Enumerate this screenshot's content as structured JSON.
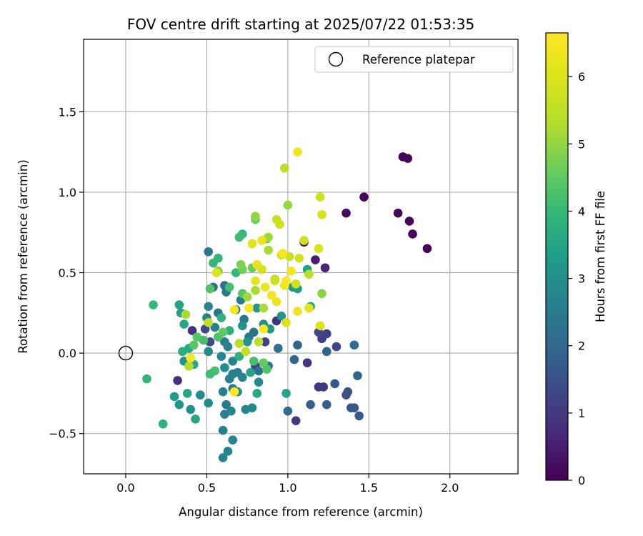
{
  "chart_data": {
    "type": "scatter",
    "title": "FOV centre drift starting at 2025/07/22 01:53:35",
    "xlabel": "Angular distance from reference (arcmin)",
    "ylabel": "Rotation from reference (arcmin)",
    "xlim": [
      -0.26,
      2.42
    ],
    "ylim": [
      -0.75,
      1.95
    ],
    "xticks": [
      0.0,
      0.5,
      1.0,
      1.5,
      2.0
    ],
    "xtick_labels": [
      "0.0",
      "0.5",
      "1.0",
      "1.5",
      "2.0"
    ],
    "yticks": [
      -0.5,
      0.0,
      0.5,
      1.0,
      1.5
    ],
    "ytick_labels": [
      "−0.5",
      "0.0",
      "0.5",
      "1.0",
      "1.5"
    ],
    "grid": true,
    "legend": {
      "position": "top-right",
      "entries": [
        "Reference platepar"
      ]
    },
    "reference_point": {
      "x": 0.0,
      "y": 0.0,
      "label": "Reference platepar"
    },
    "colorbar": {
      "label": "Hours from first FF file",
      "range": [
        0,
        6.65
      ],
      "ticks": [
        0,
        1,
        2,
        3,
        4,
        5,
        6
      ],
      "tick_labels": [
        "0",
        "1",
        "2",
        "3",
        "4",
        "5",
        "6"
      ],
      "colormap": "viridis"
    },
    "points": [
      {
        "x": 1.71,
        "y": 1.22,
        "h": 0.05
      },
      {
        "x": 1.74,
        "y": 1.21,
        "h": 0.05
      },
      {
        "x": 1.47,
        "y": 0.97,
        "h": 0.1
      },
      {
        "x": 1.36,
        "y": 0.87,
        "h": 0.15
      },
      {
        "x": 1.68,
        "y": 0.87,
        "h": 0.1
      },
      {
        "x": 1.75,
        "y": 0.82,
        "h": 0.1
      },
      {
        "x": 1.77,
        "y": 0.74,
        "h": 0.1
      },
      {
        "x": 1.86,
        "y": 0.65,
        "h": 0.05
      },
      {
        "x": 1.1,
        "y": 0.69,
        "h": 0.3
      },
      {
        "x": 1.17,
        "y": 0.58,
        "h": 0.5
      },
      {
        "x": 1.23,
        "y": 0.53,
        "h": 0.6
      },
      {
        "x": 0.32,
        "y": -0.17,
        "h": 0.8
      },
      {
        "x": 0.41,
        "y": 0.14,
        "h": 0.8
      },
      {
        "x": 0.93,
        "y": 0.2,
        "h": 0.9
      },
      {
        "x": 1.12,
        "y": -0.06,
        "h": 0.9
      },
      {
        "x": 1.05,
        "y": -0.42,
        "h": 1.0
      },
      {
        "x": 1.19,
        "y": -0.21,
        "h": 1.0
      },
      {
        "x": 1.22,
        "y": -0.21,
        "h": 1.0
      },
      {
        "x": 1.21,
        "y": 0.09,
        "h": 1.1
      },
      {
        "x": 1.24,
        "y": 0.12,
        "h": 1.1
      },
      {
        "x": 1.3,
        "y": 0.04,
        "h": 1.2
      },
      {
        "x": 0.8,
        "y": -0.08,
        "h": 1.1
      },
      {
        "x": 0.86,
        "y": 0.07,
        "h": 1.2
      },
      {
        "x": 0.52,
        "y": 0.07,
        "h": 1.3
      },
      {
        "x": 0.49,
        "y": 0.15,
        "h": 1.3
      },
      {
        "x": 1.19,
        "y": 0.13,
        "h": 1.3
      },
      {
        "x": 1.36,
        "y": -0.26,
        "h": 1.5
      },
      {
        "x": 1.37,
        "y": -0.24,
        "h": 1.5
      },
      {
        "x": 1.39,
        "y": -0.34,
        "h": 1.6
      },
      {
        "x": 1.41,
        "y": -0.34,
        "h": 1.6
      },
      {
        "x": 1.44,
        "y": -0.39,
        "h": 1.7
      },
      {
        "x": 1.29,
        "y": -0.19,
        "h": 1.7
      },
      {
        "x": 1.24,
        "y": -0.32,
        "h": 1.8
      },
      {
        "x": 1.14,
        "y": -0.32,
        "h": 1.8
      },
      {
        "x": 1.24,
        "y": 0.01,
        "h": 1.9
      },
      {
        "x": 1.06,
        "y": 0.05,
        "h": 1.9
      },
      {
        "x": 1.04,
        "y": -0.04,
        "h": 2.0
      },
      {
        "x": 1.43,
        "y": -0.14,
        "h": 2.0
      },
      {
        "x": 1.41,
        "y": 0.05,
        "h": 2.1
      },
      {
        "x": 1.0,
        "y": -0.36,
        "h": 2.1
      },
      {
        "x": 0.94,
        "y": 0.03,
        "h": 2.2
      },
      {
        "x": 0.88,
        "y": -0.08,
        "h": 2.2
      },
      {
        "x": 0.82,
        "y": -0.11,
        "h": 2.3
      },
      {
        "x": 0.79,
        "y": 0.13,
        "h": 2.3
      },
      {
        "x": 0.76,
        "y": 0.1,
        "h": 2.4
      },
      {
        "x": 0.73,
        "y": 0.21,
        "h": 2.4
      },
      {
        "x": 0.71,
        "y": 0.33,
        "h": 2.5
      },
      {
        "x": 0.68,
        "y": 0.27,
        "h": 2.5
      },
      {
        "x": 0.62,
        "y": 0.38,
        "h": 2.5
      },
      {
        "x": 0.54,
        "y": 0.41,
        "h": 2.2
      },
      {
        "x": 0.51,
        "y": 0.63,
        "h": 2.4
      },
      {
        "x": 0.57,
        "y": 0.25,
        "h": 2.3
      },
      {
        "x": 0.61,
        "y": 0.42,
        "h": 2.2
      },
      {
        "x": 0.5,
        "y": 0.22,
        "h": 2.6
      },
      {
        "x": 0.51,
        "y": 0.29,
        "h": 2.7
      },
      {
        "x": 0.55,
        "y": 0.16,
        "h": 2.6
      },
      {
        "x": 0.61,
        "y": 0.07,
        "h": 2.5
      },
      {
        "x": 0.63,
        "y": 0.04,
        "h": 2.6
      },
      {
        "x": 0.66,
        "y": -0.05,
        "h": 2.7
      },
      {
        "x": 0.69,
        "y": -0.12,
        "h": 2.6
      },
      {
        "x": 0.72,
        "y": -0.15,
        "h": 2.7
      },
      {
        "x": 0.74,
        "y": -0.35,
        "h": 2.7
      },
      {
        "x": 0.78,
        "y": -0.34,
        "h": 2.8
      },
      {
        "x": 0.82,
        "y": -0.18,
        "h": 2.8
      },
      {
        "x": 0.6,
        "y": -0.24,
        "h": 2.6
      },
      {
        "x": 0.62,
        "y": -0.32,
        "h": 2.5
      },
      {
        "x": 0.61,
        "y": -0.38,
        "h": 2.6
      },
      {
        "x": 0.65,
        "y": -0.36,
        "h": 2.7
      },
      {
        "x": 0.6,
        "y": -0.48,
        "h": 2.6
      },
      {
        "x": 0.66,
        "y": -0.54,
        "h": 2.7
      },
      {
        "x": 0.63,
        "y": -0.61,
        "h": 2.7
      },
      {
        "x": 0.6,
        "y": -0.65,
        "h": 2.7
      },
      {
        "x": 0.66,
        "y": -0.22,
        "h": 2.5
      },
      {
        "x": 0.69,
        "y": -0.24,
        "h": 2.8
      },
      {
        "x": 0.64,
        "y": -0.16,
        "h": 2.6
      },
      {
        "x": 0.66,
        "y": -0.13,
        "h": 2.6
      },
      {
        "x": 0.59,
        "y": -0.02,
        "h": 2.7
      },
      {
        "x": 0.61,
        "y": -0.09,
        "h": 2.9
      },
      {
        "x": 0.51,
        "y": -0.31,
        "h": 2.9
      },
      {
        "x": 0.51,
        "y": 0.01,
        "h": 2.8
      },
      {
        "x": 0.46,
        "y": -0.26,
        "h": 2.9
      },
      {
        "x": 0.4,
        "y": -0.35,
        "h": 3.0
      },
      {
        "x": 0.36,
        "y": -0.05,
        "h": 3.0
      },
      {
        "x": 0.33,
        "y": -0.32,
        "h": 3.1
      },
      {
        "x": 0.3,
        "y": -0.27,
        "h": 3.3
      },
      {
        "x": 0.43,
        "y": -0.41,
        "h": 3.6
      },
      {
        "x": 0.38,
        "y": -0.25,
        "h": 3.6
      },
      {
        "x": 0.34,
        "y": 0.25,
        "h": 3.4
      },
      {
        "x": 0.33,
        "y": 0.3,
        "h": 3.4
      },
      {
        "x": 0.36,
        "y": 0.18,
        "h": 3.5
      },
      {
        "x": 0.39,
        "y": 0.03,
        "h": 3.6
      },
      {
        "x": 0.42,
        "y": -0.07,
        "h": 3.6
      },
      {
        "x": 0.35,
        "y": 0.01,
        "h": 3.7
      },
      {
        "x": 0.23,
        "y": -0.44,
        "h": 3.8
      },
      {
        "x": 0.13,
        "y": -0.16,
        "h": 3.9
      },
      {
        "x": 0.17,
        "y": 0.3,
        "h": 4.0
      },
      {
        "x": 0.72,
        "y": 0.17,
        "h": 3.0
      },
      {
        "x": 0.75,
        "y": 0.07,
        "h": 3.1
      },
      {
        "x": 0.81,
        "y": 0.28,
        "h": 3.2
      },
      {
        "x": 0.85,
        "y": 0.18,
        "h": 3.0
      },
      {
        "x": 0.89,
        "y": 0.15,
        "h": 3.2
      },
      {
        "x": 0.96,
        "y": 0.23,
        "h": 3.1
      },
      {
        "x": 1.03,
        "y": 0.41,
        "h": 3.2
      },
      {
        "x": 1.06,
        "y": 0.4,
        "h": 3.3
      },
      {
        "x": 1.12,
        "y": 0.52,
        "h": 3.4
      },
      {
        "x": 1.14,
        "y": 0.29,
        "h": 3.5
      },
      {
        "x": 0.99,
        "y": -0.25,
        "h": 3.5
      },
      {
        "x": 0.81,
        "y": -0.25,
        "h": 3.6
      },
      {
        "x": 0.77,
        "y": -0.12,
        "h": 3.5
      },
      {
        "x": 0.7,
        "y": -0.02,
        "h": 3.8
      },
      {
        "x": 0.64,
        "y": 0.14,
        "h": 3.8
      },
      {
        "x": 0.59,
        "y": 0.22,
        "h": 3.8
      },
      {
        "x": 0.57,
        "y": 0.59,
        "h": 3.9
      },
      {
        "x": 0.54,
        "y": 0.56,
        "h": 4.0
      },
      {
        "x": 0.68,
        "y": 0.5,
        "h": 4.0
      },
      {
        "x": 0.72,
        "y": 0.74,
        "h": 4.0
      },
      {
        "x": 0.7,
        "y": 0.72,
        "h": 4.1
      },
      {
        "x": 0.64,
        "y": 0.41,
        "h": 4.2
      },
      {
        "x": 0.52,
        "y": 0.4,
        "h": 4.3
      },
      {
        "x": 0.52,
        "y": -0.13,
        "h": 4.1
      },
      {
        "x": 0.55,
        "y": -0.11,
        "h": 4.2
      },
      {
        "x": 0.48,
        "y": 0.08,
        "h": 4.2
      },
      {
        "x": 0.42,
        "y": 0.05,
        "h": 4.4
      },
      {
        "x": 0.44,
        "y": 0.1,
        "h": 4.4
      },
      {
        "x": 0.57,
        "y": 0.1,
        "h": 4.3
      },
      {
        "x": 0.6,
        "y": 0.13,
        "h": 4.5
      },
      {
        "x": 0.79,
        "y": -0.05,
        "h": 4.2
      },
      {
        "x": 0.87,
        "y": -0.1,
        "h": 4.3
      },
      {
        "x": 0.85,
        "y": -0.06,
        "h": 4.5
      },
      {
        "x": 0.72,
        "y": 0.37,
        "h": 4.4
      },
      {
        "x": 0.87,
        "y": 0.71,
        "h": 4.5
      },
      {
        "x": 0.8,
        "y": 0.83,
        "h": 4.6
      },
      {
        "x": 0.78,
        "y": 0.53,
        "h": 4.6
      },
      {
        "x": 0.72,
        "y": 0.52,
        "h": 4.7
      },
      {
        "x": 0.71,
        "y": 0.55,
        "h": 4.8
      },
      {
        "x": 0.57,
        "y": 0.51,
        "h": 4.8
      },
      {
        "x": 1.21,
        "y": 0.37,
        "h": 4.9
      },
      {
        "x": 1.0,
        "y": 0.92,
        "h": 5.0
      },
      {
        "x": 0.8,
        "y": 0.85,
        "h": 5.0
      },
      {
        "x": 0.88,
        "y": 0.72,
        "h": 5.1
      },
      {
        "x": 0.88,
        "y": 0.64,
        "h": 5.2
      },
      {
        "x": 0.75,
        "y": 0.35,
        "h": 5.1
      },
      {
        "x": 0.8,
        "y": 0.39,
        "h": 5.2
      },
      {
        "x": 0.85,
        "y": 0.28,
        "h": 5.2
      },
      {
        "x": 0.92,
        "y": 0.46,
        "h": 5.3
      },
      {
        "x": 1.13,
        "y": 0.49,
        "h": 5.4
      },
      {
        "x": 0.37,
        "y": 0.24,
        "h": 5.2
      },
      {
        "x": 0.39,
        "y": -0.08,
        "h": 5.3
      },
      {
        "x": 0.51,
        "y": 0.19,
        "h": 5.5
      },
      {
        "x": 0.74,
        "y": 0.01,
        "h": 5.6
      },
      {
        "x": 0.7,
        "y": 0.06,
        "h": 5.4
      },
      {
        "x": 0.82,
        "y": 0.07,
        "h": 5.5
      },
      {
        "x": 0.98,
        "y": 1.15,
        "h": 5.5
      },
      {
        "x": 0.93,
        "y": 0.83,
        "h": 5.6
      },
      {
        "x": 0.95,
        "y": 0.8,
        "h": 5.8
      },
      {
        "x": 0.96,
        "y": 0.61,
        "h": 5.8
      },
      {
        "x": 0.92,
        "y": 0.45,
        "h": 5.7
      },
      {
        "x": 0.84,
        "y": 0.52,
        "h": 5.9
      },
      {
        "x": 1.01,
        "y": 0.6,
        "h": 5.7
      },
      {
        "x": 1.05,
        "y": 0.43,
        "h": 5.8
      },
      {
        "x": 1.07,
        "y": 0.59,
        "h": 5.9
      },
      {
        "x": 1.1,
        "y": 0.7,
        "h": 5.8
      },
      {
        "x": 1.2,
        "y": 0.97,
        "h": 5.8
      },
      {
        "x": 1.21,
        "y": 0.86,
        "h": 5.9
      },
      {
        "x": 1.19,
        "y": 0.65,
        "h": 6.0
      },
      {
        "x": 1.2,
        "y": 0.17,
        "h": 6.0
      },
      {
        "x": 0.99,
        "y": 0.19,
        "h": 6.0
      },
      {
        "x": 0.56,
        "y": 0.5,
        "h": 6.0
      },
      {
        "x": 0.78,
        "y": 0.68,
        "h": 6.1
      },
      {
        "x": 0.81,
        "y": 0.55,
        "h": 6.2
      },
      {
        "x": 0.8,
        "y": 0.45,
        "h": 6.2
      },
      {
        "x": 0.86,
        "y": 0.41,
        "h": 6.3
      },
      {
        "x": 0.84,
        "y": 0.7,
        "h": 6.3
      },
      {
        "x": 0.9,
        "y": 0.36,
        "h": 6.4
      },
      {
        "x": 0.93,
        "y": 0.32,
        "h": 6.3
      },
      {
        "x": 1.06,
        "y": 1.25,
        "h": 6.4
      },
      {
        "x": 1.06,
        "y": 0.26,
        "h": 6.4
      },
      {
        "x": 1.02,
        "y": 0.51,
        "h": 6.5
      },
      {
        "x": 0.98,
        "y": 0.42,
        "h": 6.5
      },
      {
        "x": 0.97,
        "y": 0.62,
        "h": 6.6
      },
      {
        "x": 0.76,
        "y": 0.28,
        "h": 6.6
      },
      {
        "x": 0.85,
        "y": 0.15,
        "h": 6.6
      },
      {
        "x": 0.67,
        "y": -0.24,
        "h": 6.6
      },
      {
        "x": 0.4,
        "y": -0.03,
        "h": 6.6
      },
      {
        "x": 0.67,
        "y": 0.27,
        "h": 6.5
      },
      {
        "x": 0.99,
        "y": 0.45,
        "h": 6.6
      },
      {
        "x": 1.13,
        "y": 0.28,
        "h": 6.2
      }
    ]
  }
}
